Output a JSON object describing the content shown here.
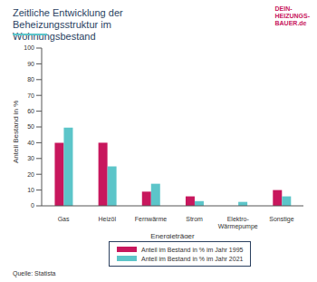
{
  "chart_data": {
    "type": "bar",
    "title": "Zeitliche Entwicklung der Beheizungsstruktur im Wohnungsbestand",
    "x_label": "Energieträger",
    "y_label": "Anteil Bestand in %",
    "categories": [
      "Gas",
      "Heizöl",
      "Fernwärme",
      "Strom",
      "Elektro-Wärmepumpe",
      "Sonstige"
    ],
    "series": [
      {
        "name": "Anteil im Bestand in % im Jahr 1995",
        "color": "#c8175d",
        "values": [
          40,
          40,
          9,
          6,
          0,
          10
        ]
      },
      {
        "name": "Anteil im Bestand in % im Jahr 2021",
        "color": "#5cc5c9",
        "values": [
          49.5,
          25,
          14,
          3,
          2.5,
          6
        ]
      }
    ],
    "ylim": [
      0,
      100
    ],
    "yticks": [
      0,
      10,
      20,
      30,
      40,
      50,
      60,
      70,
      80,
      90,
      100
    ],
    "grid": false,
    "source": "Quelle: Statista",
    "logo": "DEIN-HEIZUNGS-BAUER.de"
  }
}
